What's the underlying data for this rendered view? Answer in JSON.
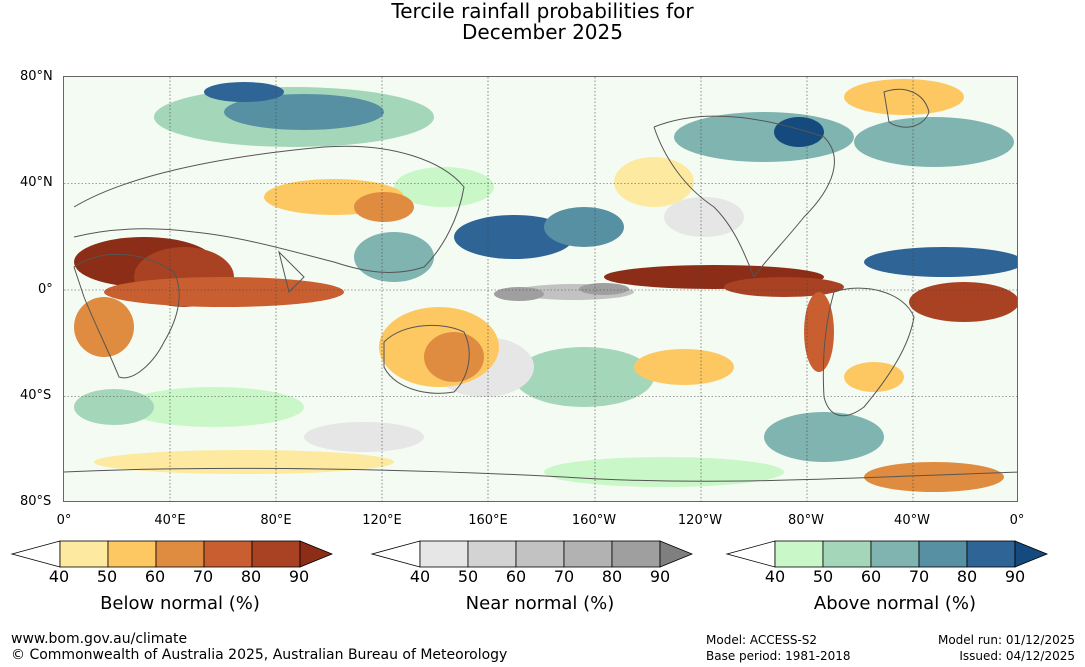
{
  "title": {
    "line1": "Tercile rainfall probabilities for",
    "line2": "December 2025"
  },
  "map": {
    "lat_labels": [
      "80°N",
      "40°N",
      "0°",
      "40°S",
      "80°S"
    ],
    "lon_labels": [
      "0°",
      "40°E",
      "80°E",
      "120°E",
      "160°E",
      "160°W",
      "120°W",
      "80°W",
      "40°W",
      "0°"
    ]
  },
  "legends": [
    {
      "title": "Below normal (%)",
      "ticks": [
        "40",
        "50",
        "60",
        "70",
        "80",
        "90"
      ],
      "colors": [
        "#ffffff",
        "#fdeaa0",
        "#fdc862",
        "#df8c40",
        "#c95f30",
        "#a84223",
        "#8c2d17"
      ]
    },
    {
      "title": "Near normal (%)",
      "ticks": [
        "40",
        "50",
        "60",
        "70",
        "80",
        "90"
      ],
      "colors": [
        "#ffffff",
        "#e6e6e6",
        "#d3d3d3",
        "#c2c2c2",
        "#b2b2b2",
        "#9f9f9f",
        "#7f7f7f"
      ]
    },
    {
      "title": "Above normal (%)",
      "ticks": [
        "40",
        "50",
        "60",
        "70",
        "80",
        "90"
      ],
      "colors": [
        "#ffffff",
        "#c9f7c8",
        "#a4d6b9",
        "#7fb4b1",
        "#5890a3",
        "#2f6496",
        "#154a7e"
      ]
    }
  ],
  "footer": {
    "website": "www.bom.gov.au/climate",
    "copyright": "© Commonwealth of Australia 2025, Australian Bureau of Meteorology",
    "model": "Model: ACCESS-S2",
    "base_period": "Base period: 1981-2018",
    "model_run": "Model run: 01/12/2025",
    "issued": "Issued: 04/12/2025"
  }
}
